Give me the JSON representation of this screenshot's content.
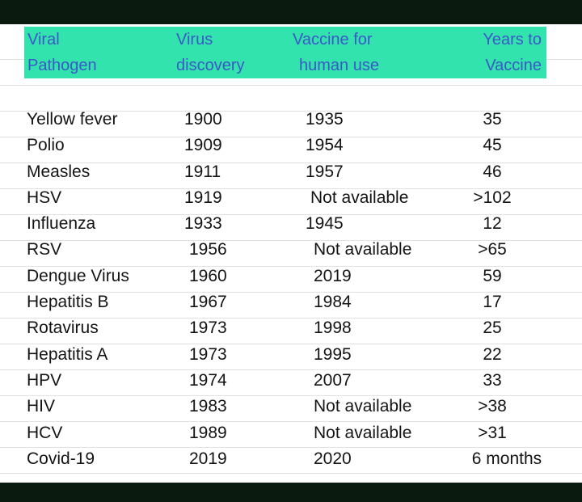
{
  "header": {
    "col1": [
      "Viral",
      "Pathogen"
    ],
    "col2": [
      "Virus",
      "discovery"
    ],
    "col3": [
      "Vaccine for",
      "human use"
    ],
    "col4": [
      "Years to",
      "Vaccine"
    ]
  },
  "rows": [
    {
      "pathogen": "Yellow fever",
      "discovery": "1900",
      "vaccine": "1935",
      "years": "35"
    },
    {
      "pathogen": "Polio",
      "discovery": "1909",
      "vaccine": "1954",
      "years": "45"
    },
    {
      "pathogen": "Measles",
      "discovery": "1911",
      "vaccine": "1957",
      "years": "46"
    },
    {
      "pathogen": "HSV",
      "discovery": "1919",
      "vaccine": "Not available",
      "years": ">102"
    },
    {
      "pathogen": "Influenza",
      "discovery": "1933",
      "vaccine": "1945",
      "years": "12"
    },
    {
      "pathogen": "RSV",
      "discovery": "1956",
      "vaccine": "Not available",
      "years": ">65"
    },
    {
      "pathogen": "Dengue Virus",
      "discovery": "1960",
      "vaccine": "2019",
      "years": "59"
    },
    {
      "pathogen": "Hepatitis B",
      "discovery": "1967",
      "vaccine": "1984",
      "years": "17"
    },
    {
      "pathogen": "Rotavirus",
      "discovery": "1973",
      "vaccine": "1998",
      "years": "25"
    },
    {
      "pathogen": "Hepatitis A",
      "discovery": "1973",
      "vaccine": "1995",
      "years": "22"
    },
    {
      "pathogen": "HPV",
      "discovery": "1974",
      "vaccine": "2007",
      "years": "33"
    },
    {
      "pathogen": "HIV",
      "discovery": "1983",
      "vaccine": "Not available",
      "years": ">38"
    },
    {
      "pathogen": "HCV",
      "discovery": "1989",
      "vaccine": "Not available",
      "years": ">31"
    },
    {
      "pathogen": "Covid-19",
      "discovery": "2019",
      "vaccine": "2020",
      "years": "6 months"
    }
  ],
  "colors": {
    "header_bg": "#33e3ad",
    "header_text": "#3a58c9",
    "frame": "#0b1a0f"
  }
}
